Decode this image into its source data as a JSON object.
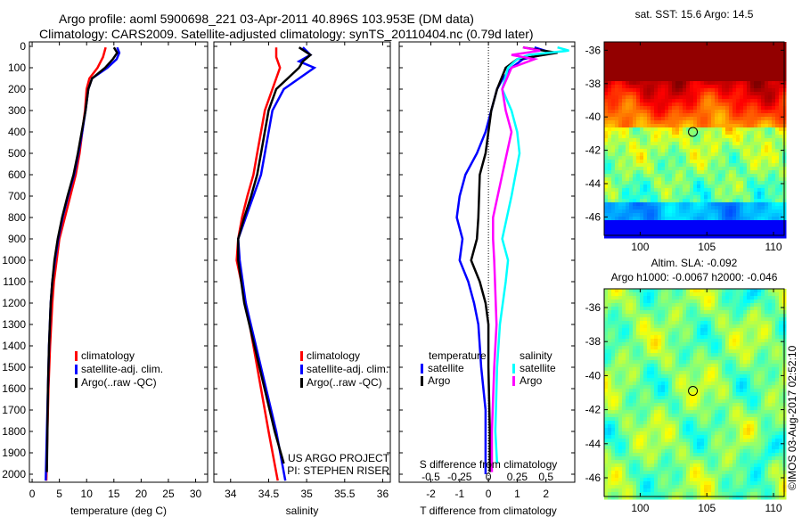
{
  "title_line1": "Argo profile: aoml 5900698_221 03-Apr-2011 40.896S 103.953E (DM data)",
  "title_line2": "Climatology: CARS2009. Satellite-adjusted climatology: synTS_20110404.nc (0.79d later)",
  "credit": "US ARGO PROJECT",
  "pi": "PI: STEPHEN RISER",
  "stamp": "©IMOS 03-Aug-2017 02:52:10",
  "colors": {
    "clim": "#ff0000",
    "sat": "#0000ff",
    "argo": "#000000",
    "s_sat": "#00ffff",
    "s_argo": "#ff00ff"
  },
  "chart_data": [
    {
      "type": "line",
      "name": "temperature",
      "xlabel": "temperature (deg C)",
      "xlim": [
        -0.5,
        32.2
      ],
      "xticks": [
        0,
        5,
        10,
        15,
        20,
        25,
        30
      ],
      "ylim": [
        -20,
        2035
      ],
      "yticks": [
        0,
        100,
        200,
        300,
        400,
        500,
        600,
        700,
        800,
        900,
        1000,
        1100,
        1200,
        1300,
        1400,
        1500,
        1600,
        1700,
        1800,
        1900,
        2000
      ],
      "legend": [
        "climatology",
        "satellite-adj. clim.",
        "Argo(..raw -QC)"
      ],
      "series": [
        {
          "name": "climatology",
          "color": "clim",
          "depth": [
            5,
            50,
            100,
            150,
            200,
            300,
            400,
            500,
            600,
            700,
            800,
            900,
            1000,
            1100,
            1200,
            1400,
            1600,
            1800,
            2030
          ],
          "values": [
            13.5,
            13,
            12,
            10.5,
            10,
            9.7,
            9.2,
            8.7,
            8,
            7,
            6,
            5,
            4.5,
            4,
            3.7,
            3.3,
            3,
            2.8,
            2.6
          ]
        },
        {
          "name": "satellite-adj. clim.",
          "color": "sat",
          "depth": [
            5,
            30,
            60,
            100,
            150,
            200,
            300,
            400,
            500,
            600,
            700,
            800,
            900,
            1000,
            1100,
            1200,
            1400,
            1600,
            1800,
            2030
          ],
          "values": [
            15.6,
            16,
            15.5,
            13.8,
            11,
            10.3,
            9.8,
            9.2,
            8.5,
            7.7,
            6.6,
            5.6,
            4.8,
            4.2,
            3.7,
            3.4,
            3.1,
            2.9,
            2.7,
            2.5
          ]
        },
        {
          "name": "Argo",
          "color": "argo",
          "depth": [
            5,
            30,
            60,
            100,
            150,
            200,
            300,
            400,
            500,
            600,
            700,
            800,
            900,
            1000,
            1100,
            1200,
            1400,
            1600,
            1800,
            1990
          ],
          "values": [
            15,
            15.6,
            14.8,
            13.4,
            11,
            10.3,
            9.8,
            9.1,
            8.4,
            7.6,
            6.5,
            5.5,
            4.7,
            4.1,
            3.7,
            3.4,
            3.1,
            2.9,
            2.8,
            2.7
          ]
        }
      ]
    },
    {
      "type": "line",
      "name": "salinity",
      "xlabel": "salinity",
      "xlim": [
        33.78,
        36.1
      ],
      "xticks": [
        34,
        34.5,
        35,
        35.5,
        36
      ],
      "legend": [
        "climatology",
        "satellite-adj. clim.",
        "Argo(..raw -QC)"
      ],
      "series": [
        {
          "name": "climatology",
          "color": "clim",
          "depth": [
            5,
            50,
            100,
            200,
            300,
            500,
            600,
            700,
            800,
            900,
            1000,
            1200,
            1400,
            1600,
            1800,
            2030
          ],
          "values": [
            34.6,
            34.6,
            34.65,
            34.55,
            34.45,
            34.35,
            34.3,
            34.22,
            34.15,
            34.1,
            34.08,
            34.2,
            34.3,
            34.4,
            34.5,
            34.62
          ]
        },
        {
          "name": "satellite-adj. clim.",
          "color": "sat",
          "depth": [
            5,
            40,
            70,
            100,
            150,
            200,
            300,
            500,
            600,
            700,
            800,
            900,
            1000,
            1200,
            1500,
            1800,
            2030
          ],
          "values": [
            34.95,
            35.05,
            34.9,
            35.1,
            34.9,
            34.7,
            34.55,
            34.45,
            34.4,
            34.3,
            34.2,
            34.1,
            34.12,
            34.2,
            34.4,
            34.6,
            34.72
          ]
        },
        {
          "name": "Argo",
          "color": "argo",
          "depth": [
            5,
            40,
            70,
            100,
            150,
            200,
            300,
            500,
            600,
            700,
            800,
            900,
            1000,
            1200,
            1500,
            1800,
            1950
          ],
          "values": [
            34.9,
            35.05,
            34.95,
            34.9,
            34.75,
            34.6,
            34.5,
            34.4,
            34.35,
            34.27,
            34.18,
            34.1,
            34.1,
            34.18,
            34.38,
            34.58,
            34.7
          ]
        }
      ]
    },
    {
      "type": "line",
      "name": "difference",
      "xlabel": "T difference from climatology",
      "xlabel2": "S difference from climatology",
      "xlim": [
        -3.1,
        3.0
      ],
      "xticks": [
        -2,
        -1,
        0,
        1,
        2
      ],
      "xticks_s": [
        -0.5,
        -0.25,
        0,
        0.25,
        0.5
      ],
      "legend_title_t": "temperature",
      "legend_title_s": "salinity",
      "legend": [
        "satellite",
        "Argo",
        "satellite",
        "Argo"
      ],
      "series": [
        {
          "name": "T satellite",
          "color": "sat",
          "unit": "T",
          "depth": [
            5,
            30,
            60,
            100,
            150,
            200,
            300,
            400,
            500,
            600,
            700,
            800,
            900,
            1000,
            1100,
            1200,
            1300,
            1500,
            1700,
            2000
          ],
          "values": [
            1.6,
            2.2,
            1.2,
            0.8,
            0.5,
            0.3,
            0.1,
            -0.1,
            -0.4,
            -0.8,
            -1.0,
            -1.1,
            -0.9,
            -1.0,
            -0.7,
            -0.5,
            -0.35,
            -0.25,
            -0.1,
            -0.1
          ]
        },
        {
          "name": "T Argo",
          "color": "argo",
          "unit": "T",
          "depth": [
            5,
            30,
            60,
            100,
            200,
            300,
            400,
            500,
            600,
            800,
            900,
            1000,
            1100,
            1200,
            1300,
            1500,
            1800,
            1990
          ],
          "values": [
            1.2,
            2.4,
            1.0,
            0.6,
            0.3,
            0.1,
            0.0,
            -0.1,
            -0.3,
            -0.35,
            -0.4,
            -0.6,
            -0.3,
            -0.1,
            0.0,
            0.0,
            0.05,
            0.05
          ]
        },
        {
          "name": "S satellite",
          "color": "s_sat",
          "unit": "S",
          "depth": [
            5,
            20,
            40,
            60,
            100,
            200,
            300,
            400,
            500,
            700,
            900,
            1000,
            1100,
            1300,
            1500,
            1800,
            1950
          ],
          "values": [
            0.6,
            0.7,
            0.35,
            0.25,
            0.17,
            0.12,
            0.2,
            0.25,
            0.27,
            0.2,
            0.12,
            0.17,
            0.15,
            0.1,
            0.075,
            0.06,
            0.075
          ]
        },
        {
          "name": "S Argo",
          "color": "s_argo",
          "unit": "S",
          "depth": [
            5,
            20,
            40,
            60,
            100,
            200,
            300,
            400,
            600,
            800,
            900,
            1000,
            1300,
            1500,
            1800,
            1990
          ],
          "values": [
            0.3,
            0.45,
            0.2,
            0.4,
            0.2,
            0.12,
            0.15,
            0.2,
            0.12,
            0.04,
            0.04,
            0.05,
            0.07,
            0.05,
            0.03,
            0.03
          ]
        }
      ]
    },
    {
      "type": "heatmap",
      "name": "sst-map",
      "title": "sat. SST: 15.6 Argo: 14.5",
      "xlim": [
        97.3,
        110.8
      ],
      "ylim": [
        -35.5,
        -47.1
      ],
      "xticks": [
        100,
        105,
        110
      ],
      "yticks": [
        -36,
        -38,
        -40,
        -42,
        -44,
        -46
      ],
      "marker": [
        103.953,
        -40.896
      ]
    },
    {
      "type": "heatmap",
      "name": "sla-map",
      "title": "Altim. SLA: -0.092",
      "subtitle": "Argo h1000: -0.0067 h2000: -0.046",
      "xlim": [
        97.3,
        110.8
      ],
      "ylim": [
        -34.9,
        -47.1
      ],
      "xticks": [
        100,
        105,
        110
      ],
      "yticks": [
        -36,
        -38,
        -40,
        -42,
        -44,
        -46
      ],
      "marker": [
        103.953,
        -40.896
      ]
    }
  ]
}
